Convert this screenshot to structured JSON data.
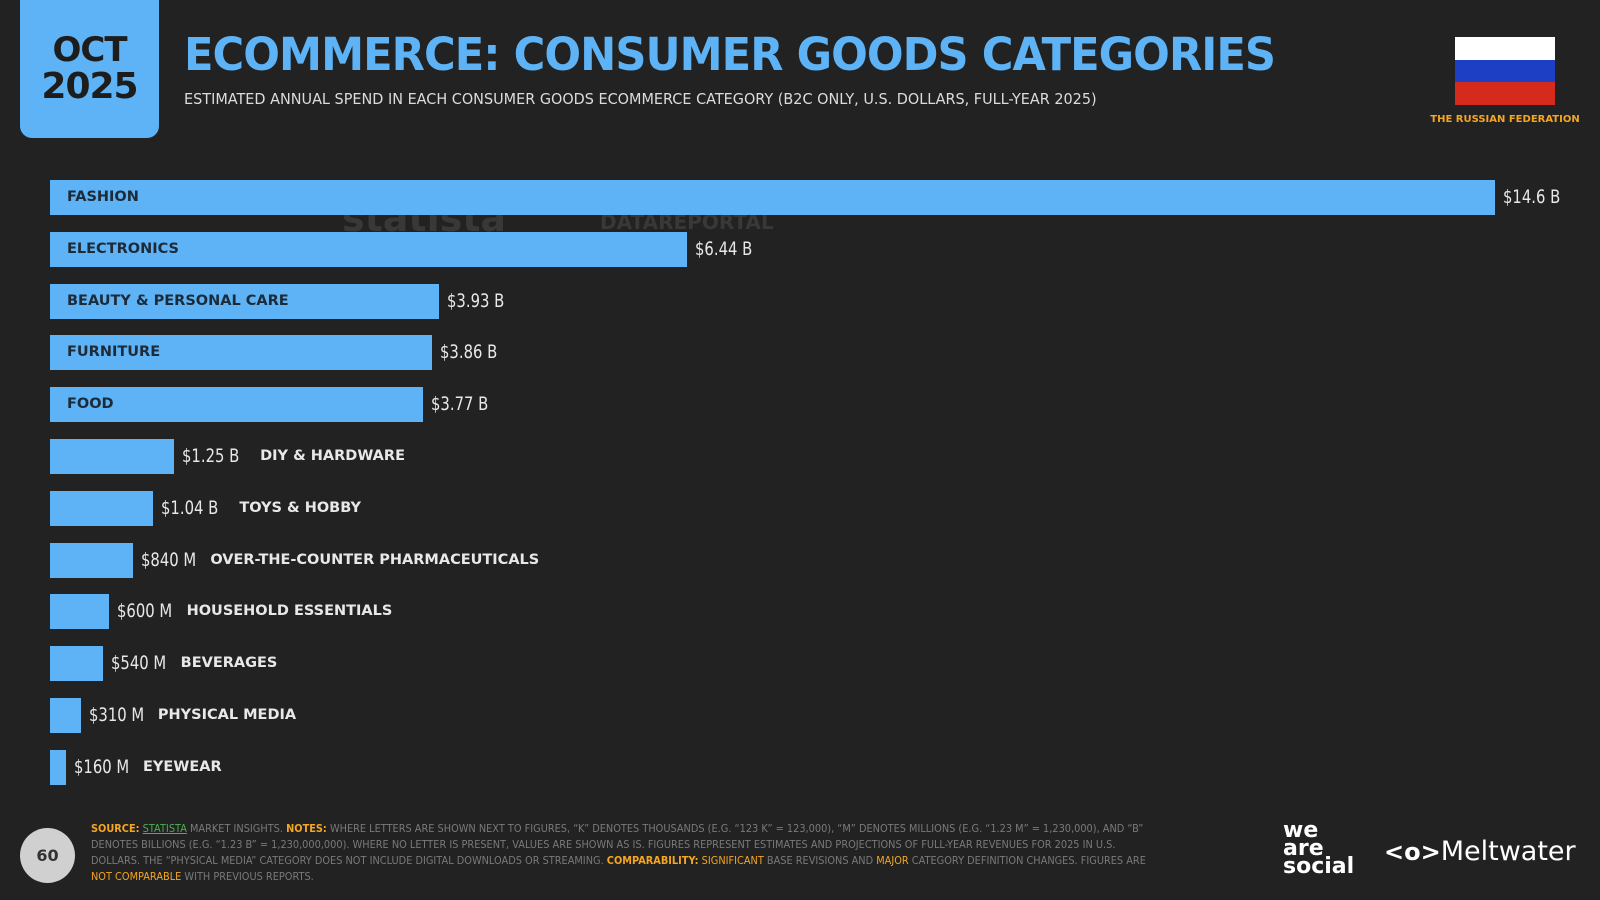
{
  "header": {
    "month": "OCT",
    "year": "2025",
    "title": "ECOMMERCE: CONSUMER GOODS CATEGORIES",
    "subtitle": "ESTIMATED ANNUAL SPEND IN EACH CONSUMER GOODS ECOMMERCE CATEGORY (B2C ONLY, U.S. DOLLARS, FULL-YEAR 2025)",
    "country": "THE RUSSIAN FEDERATION",
    "flag_colors": [
      "#ffffff",
      "#1c3fc4",
      "#d52b1e"
    ]
  },
  "watermarks": {
    "statista": "statista",
    "datareportal": "DATAREPORTAL"
  },
  "chart_data": {
    "type": "bar",
    "orientation": "horizontal",
    "unit": "USD",
    "categories": [
      "FASHION",
      "ELECTRONICS",
      "BEAUTY & PERSONAL CARE",
      "FURNITURE",
      "FOOD",
      "DIY & HARDWARE",
      "TOYS & HOBBY",
      "OVER-THE-COUNTER PHARMACEUTICALS",
      "HOUSEHOLD ESSENTIALS",
      "BEVERAGES",
      "PHYSICAL MEDIA",
      "EYEWEAR"
    ],
    "values": [
      14600000000,
      6440000000,
      3930000000,
      3860000000,
      3770000000,
      1250000000,
      1040000000,
      840000000,
      600000000,
      540000000,
      310000000,
      160000000
    ],
    "data_labels": [
      "$14.6 B",
      "$6.44 B",
      "$3.93 B",
      "$3.86 B",
      "$3.77 B",
      "$1.25 B",
      "$1.04 B",
      "$840 M",
      "$600 M",
      "$540 M",
      "$310 M",
      "$160 M"
    ],
    "bar_color": "#5db3f5",
    "grid": false,
    "legend": "none"
  },
  "footer": {
    "source_label": "SOURCE:",
    "source_link": "STATISTA",
    "source_rest": " MARKET INSIGHTS. ",
    "notes_label": "NOTES:",
    "notes_text": " WHERE LETTERS ARE SHOWN NEXT TO FIGURES, “K” DENOTES THOUSANDS (E.G. “123 K” = 123,000), “M” DENOTES MILLIONS (E.G. “1.23 M” = 1,230,000), AND “B” DENOTES BILLIONS (E.G. “1.23 B” = 1,230,000,000). WHERE NO LETTER IS PRESENT, VALUES ARE SHOWN AS IS. FIGURES REPRESENT ESTIMATES AND PROJECTIONS OF FULL-YEAR REVENUES FOR 2025 IN U.S. DOLLARS. THE “PHYSICAL MEDIA” CATEGORY DOES NOT INCLUDE DIGITAL DOWNLOADS OR STREAMING. ",
    "comparability_label": "COMPARABILITY:",
    "significant": " SIGNIFICANT",
    "comp_text1": " BASE REVISIONS AND ",
    "major": "MAJOR",
    "comp_text2": " CATEGORY DEFINITION CHANGES. FIGURES ARE ",
    "not_comparable": "NOT COMPARABLE",
    "comp_text3": " WITH PREVIOUS REPORTS.",
    "page_number": "60",
    "brand1": "we are social",
    "brand2": "Meltwater"
  }
}
